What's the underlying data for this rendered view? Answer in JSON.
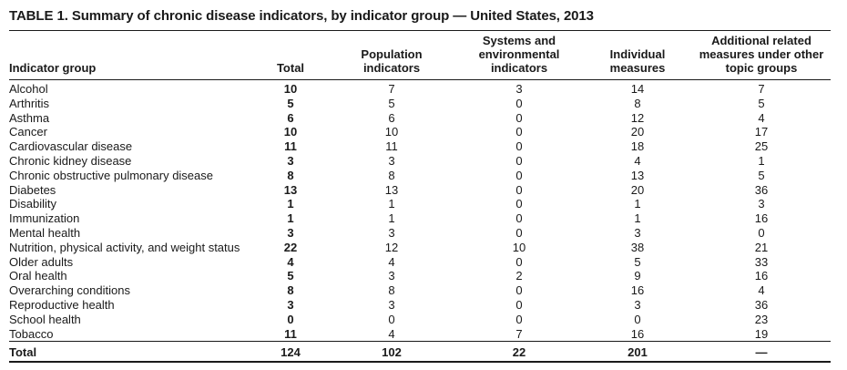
{
  "title": "TABLE 1. Summary of chronic disease indicators, by indicator group — United States, 2013",
  "headers": {
    "indicator_group": "Indicator group",
    "total": "Total",
    "population": [
      "Population",
      "indicators"
    ],
    "systems": [
      "Systems and",
      "environmental",
      "indicators"
    ],
    "individual": [
      "Individual",
      "measures"
    ],
    "additional": [
      "Additional related",
      "measures under other",
      "topic groups"
    ]
  },
  "rows": [
    {
      "group": "Alcohol",
      "total": "10",
      "population": "7",
      "systems": "3",
      "individual": "14",
      "additional": "7"
    },
    {
      "group": "Arthritis",
      "total": "5",
      "population": "5",
      "systems": "0",
      "individual": "8",
      "additional": "5"
    },
    {
      "group": "Asthma",
      "total": "6",
      "population": "6",
      "systems": "0",
      "individual": "12",
      "additional": "4"
    },
    {
      "group": "Cancer",
      "total": "10",
      "population": "10",
      "systems": "0",
      "individual": "20",
      "additional": "17"
    },
    {
      "group": "Cardiovascular disease",
      "total": "11",
      "population": "11",
      "systems": "0",
      "individual": "18",
      "additional": "25"
    },
    {
      "group": "Chronic kidney disease",
      "total": "3",
      "population": "3",
      "systems": "0",
      "individual": "4",
      "additional": "1"
    },
    {
      "group": "Chronic obstructive pulmonary disease",
      "total": "8",
      "population": "8",
      "systems": "0",
      "individual": "13",
      "additional": "5"
    },
    {
      "group": "Diabetes",
      "total": "13",
      "population": "13",
      "systems": "0",
      "individual": "20",
      "additional": "36"
    },
    {
      "group": "Disability",
      "total": "1",
      "population": "1",
      "systems": "0",
      "individual": "1",
      "additional": "3"
    },
    {
      "group": "Immunization",
      "total": "1",
      "population": "1",
      "systems": "0",
      "individual": "1",
      "additional": "16"
    },
    {
      "group": "Mental health",
      "total": "3",
      "population": "3",
      "systems": "0",
      "individual": "3",
      "additional": "0"
    },
    {
      "group": "Nutrition, physical activity, and weight status",
      "total": "22",
      "population": "12",
      "systems": "10",
      "individual": "38",
      "additional": "21"
    },
    {
      "group": "Older adults",
      "total": "4",
      "population": "4",
      "systems": "0",
      "individual": "5",
      "additional": "33"
    },
    {
      "group": "Oral health",
      "total": "5",
      "population": "3",
      "systems": "2",
      "individual": "9",
      "additional": "16"
    },
    {
      "group": "Overarching conditions",
      "total": "8",
      "population": "8",
      "systems": "0",
      "individual": "16",
      "additional": "4"
    },
    {
      "group": "Reproductive health",
      "total": "3",
      "population": "3",
      "systems": "0",
      "individual": "3",
      "additional": "36"
    },
    {
      "group": "School health",
      "total": "0",
      "population": "0",
      "systems": "0",
      "individual": "0",
      "additional": "23"
    },
    {
      "group": "Tobacco",
      "total": "11",
      "population": "4",
      "systems": "7",
      "individual": "16",
      "additional": "19"
    }
  ],
  "total_row": {
    "group": "Total",
    "total": "124",
    "population": "102",
    "systems": "22",
    "individual": "201",
    "additional": "—"
  }
}
